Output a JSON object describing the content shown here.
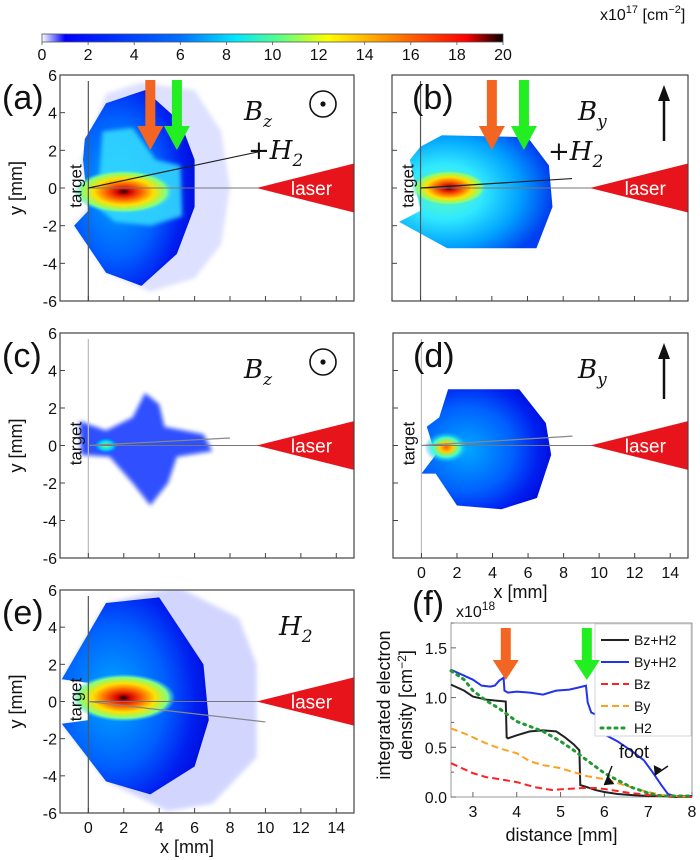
{
  "colorbar": {
    "unit_prefix": "x10",
    "unit_exp": "17",
    "unit_suffix": "[cm",
    "unit_suffix_exp": "−2",
    "unit_close": "]",
    "ticks": [
      "0",
      "2",
      "4",
      "6",
      "8",
      "10",
      "12",
      "14",
      "16",
      "18",
      "20"
    ],
    "range": [
      0,
      20
    ],
    "colormap": [
      "#ffffff",
      "#0000ff",
      "#0080ff",
      "#00ffff",
      "#ffff00",
      "#ff8000",
      "#ff0000",
      "#000000"
    ]
  },
  "arrow_colors": {
    "orange": "#f26522",
    "green": "#22ee22"
  },
  "laser_color": "#e8141b",
  "chart_data": [
    {
      "type": "heatmap",
      "panel": "(a)",
      "condition_label": "B",
      "condition_sub": "z",
      "condition_extra": "+H",
      "condition_extra_sub": "2",
      "field_symbol": "out-of-plane",
      "xlabel": "",
      "ylabel": "y [mm]",
      "xlim": [
        -1.6,
        15
      ],
      "ylim": [
        -6,
        6
      ],
      "yticks": [
        "6",
        "4",
        "2",
        "0",
        "-2",
        "-4",
        "-6"
      ],
      "xticks": [],
      "target_label": "target",
      "laser_label": "laser",
      "arrows": [
        {
          "color": "orange",
          "x_mm": 3.5
        },
        {
          "color": "green",
          "x_mm": 5.0
        }
      ],
      "axis_line_slope_end": [
        10,
        2.0
      ]
    },
    {
      "type": "heatmap",
      "panel": "(b)",
      "condition_label": "B",
      "condition_sub": "y",
      "condition_extra": "+H",
      "condition_extra_sub": "2",
      "field_symbol": "up-arrow",
      "xlabel": "",
      "ylabel": "",
      "xlim": [
        -1.6,
        15
      ],
      "ylim": [
        -6,
        6
      ],
      "yticks": [],
      "xticks": [],
      "target_label": "target",
      "laser_label": "laser",
      "arrows": [
        {
          "color": "orange",
          "x_mm": 4.0
        },
        {
          "color": "green",
          "x_mm": 5.8
        }
      ],
      "axis_line_slope_end": [
        8.5,
        0.5
      ]
    },
    {
      "type": "heatmap",
      "panel": "(c)",
      "condition_label": "B",
      "condition_sub": "z",
      "condition_extra": "",
      "condition_extra_sub": "",
      "field_symbol": "out-of-plane",
      "xlabel": "",
      "ylabel": "y [mm]",
      "xlim": [
        -1.6,
        15
      ],
      "ylim": [
        -6,
        6
      ],
      "yticks": [
        "6",
        "4",
        "2",
        "0",
        "-2",
        "-4",
        "-6"
      ],
      "xticks": [],
      "target_label": "target",
      "laser_label": "laser",
      "arrows": [],
      "axis_line_slope_end": [
        8.0,
        0.4
      ]
    },
    {
      "type": "heatmap",
      "panel": "(d)",
      "condition_label": "B",
      "condition_sub": "y",
      "condition_extra": "",
      "condition_extra_sub": "",
      "field_symbol": "up-arrow",
      "xlabel": "x [mm]",
      "ylabel": "",
      "xlim": [
        -1.6,
        15
      ],
      "ylim": [
        -6,
        6
      ],
      "yticks": [],
      "xticks": [
        "0",
        "2",
        "4",
        "6",
        "8",
        "10",
        "12",
        "14"
      ],
      "target_label": "target",
      "laser_label": "laser",
      "arrows": [],
      "axis_line_slope_end": [
        8.5,
        0.5
      ]
    },
    {
      "type": "heatmap",
      "panel": "(e)",
      "condition_label": "H",
      "condition_sub": "2",
      "condition_extra": "",
      "condition_extra_sub": "",
      "field_symbol": "none",
      "xlabel": "x [mm]",
      "ylabel": "y [mm]",
      "xlim": [
        -1.6,
        15
      ],
      "ylim": [
        -6,
        6
      ],
      "yticks": [
        "6",
        "4",
        "2",
        "0",
        "-2",
        "-4",
        "-6"
      ],
      "xticks": [
        "0",
        "2",
        "4",
        "6",
        "8",
        "10",
        "12",
        "14"
      ],
      "target_label": "target",
      "laser_label": "laser",
      "arrows": [],
      "axis_line_slope_end": [
        10,
        -1.1
      ]
    },
    {
      "type": "line",
      "panel": "(f)",
      "title": "",
      "xlabel": "distance [mm]",
      "ylabel": "integrated electron density [cm",
      "ylabel_exp": "−2",
      "ylabel_close": "]",
      "ylabel_line1": "integrated electron",
      "ylabel_line2": "density [cm",
      "y_multiplier_prefix": "x10",
      "y_multiplier_exp": "18",
      "xlim": [
        2.5,
        8
      ],
      "ylim": [
        0,
        1.75
      ],
      "xticks": [
        "3",
        "4",
        "5",
        "6",
        "7",
        "8"
      ],
      "yticks": [
        "0.0",
        "0.5",
        "1.0",
        "1.5"
      ],
      "legend_position": "top-right",
      "annotation": "foot",
      "arrows": [
        {
          "color": "orange",
          "x": 3.75
        },
        {
          "color": "green",
          "x": 5.6
        }
      ],
      "series": [
        {
          "name": "Bz+H2",
          "color": "#222222",
          "style": "solid",
          "x": [
            2.5,
            2.8,
            3.0,
            3.3,
            3.5,
            3.75,
            3.77,
            3.8,
            4.0,
            4.3,
            4.6,
            4.9,
            5.1,
            5.3,
            5.43,
            5.45,
            5.6,
            5.8,
            6.0,
            6.3,
            6.6,
            7.0,
            7.3,
            7.6,
            8.0
          ],
          "y": [
            1.13,
            1.07,
            1.01,
            0.98,
            0.97,
            0.96,
            0.6,
            0.59,
            0.62,
            0.66,
            0.67,
            0.66,
            0.6,
            0.53,
            0.47,
            0.12,
            0.1,
            0.07,
            0.05,
            0.03,
            0.02,
            0.01,
            0.01,
            0.0,
            0.0
          ]
        },
        {
          "name": "By+H2",
          "color": "#2233ee",
          "style": "solid",
          "x": [
            2.5,
            2.8,
            3.0,
            3.2,
            3.4,
            3.5,
            3.6,
            3.7,
            3.72,
            3.8,
            4.0,
            4.3,
            4.6,
            4.9,
            5.2,
            5.4,
            5.58,
            5.62,
            5.7,
            5.8,
            5.85,
            6.0,
            6.3,
            6.6,
            6.9,
            7.1,
            7.3,
            7.45,
            7.6,
            8.0
          ],
          "y": [
            1.28,
            1.22,
            1.18,
            1.12,
            1.11,
            1.12,
            1.17,
            1.2,
            1.07,
            1.05,
            1.06,
            1.05,
            1.03,
            1.07,
            1.08,
            1.1,
            1.12,
            0.95,
            0.85,
            0.83,
            0.66,
            0.63,
            0.56,
            0.47,
            0.37,
            0.25,
            0.12,
            0.03,
            0.01,
            0.01
          ]
        },
        {
          "name": "Bz",
          "color": "#ff2222",
          "style": "dashed",
          "x": [
            2.5,
            2.8,
            3.0,
            3.3,
            3.6,
            4.0,
            4.4,
            4.8,
            5.1,
            5.5,
            5.8,
            6.0,
            6.3,
            6.6,
            7.0,
            7.3,
            7.6,
            8.0
          ],
          "y": [
            0.34,
            0.28,
            0.24,
            0.2,
            0.18,
            0.15,
            0.1,
            0.07,
            0.08,
            0.09,
            0.09,
            0.08,
            0.06,
            0.04,
            0.02,
            0.01,
            0.0,
            0.0
          ]
        },
        {
          "name": "By",
          "color": "#ffa020",
          "style": "dashed",
          "x": [
            2.5,
            2.8,
            3.0,
            3.3,
            3.6,
            4.0,
            4.3,
            4.6,
            5.0,
            5.3,
            5.6,
            6.0,
            6.3,
            6.6,
            7.0,
            7.3,
            7.6,
            8.0
          ],
          "y": [
            0.69,
            0.64,
            0.6,
            0.54,
            0.49,
            0.44,
            0.36,
            0.32,
            0.29,
            0.25,
            0.21,
            0.18,
            0.14,
            0.1,
            0.05,
            0.02,
            0.01,
            0.0
          ]
        },
        {
          "name": "H2",
          "color": "#229933",
          "style": "dotted",
          "x": [
            2.5,
            2.8,
            3.0,
            3.3,
            3.6,
            4.0,
            4.3,
            4.6,
            5.0,
            5.3,
            5.6,
            6.0,
            6.3,
            6.6,
            7.0,
            7.3,
            7.6,
            8.0
          ],
          "y": [
            1.27,
            1.18,
            1.07,
            0.97,
            0.89,
            0.76,
            0.71,
            0.66,
            0.56,
            0.47,
            0.37,
            0.24,
            0.17,
            0.1,
            0.04,
            0.01,
            0.01,
            0.01
          ]
        }
      ]
    }
  ]
}
